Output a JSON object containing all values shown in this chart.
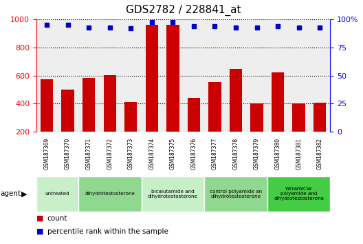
{
  "title": "GDS2782 / 228841_at",
  "samples": [
    "GSM187369",
    "GSM187370",
    "GSM187371",
    "GSM187372",
    "GSM187373",
    "GSM187374",
    "GSM187375",
    "GSM187376",
    "GSM187377",
    "GSM187378",
    "GSM187379",
    "GSM187380",
    "GSM187381",
    "GSM187382"
  ],
  "counts": [
    575,
    500,
    585,
    605,
    410,
    960,
    960,
    440,
    555,
    650,
    400,
    625,
    400,
    405
  ],
  "percentile_ranks": [
    95,
    95,
    93,
    93,
    92,
    98,
    98,
    94,
    94,
    93,
    93,
    94,
    93,
    93
  ],
  "bar_color": "#cc0000",
  "dot_color": "#0000cc",
  "ylim_left": [
    200,
    1000
  ],
  "yticks_left": [
    200,
    400,
    600,
    800,
    1000
  ],
  "ylim_right": [
    0,
    100
  ],
  "yticks_right": [
    0,
    25,
    50,
    75,
    100
  ],
  "groups": [
    {
      "label": "untreated",
      "indices": [
        0,
        1
      ],
      "color": "#c8f0c8"
    },
    {
      "label": "dihydrotestosterone",
      "indices": [
        2,
        3,
        4
      ],
      "color": "#90d890"
    },
    {
      "label": "bicalutamide and\ndihydrotestosterone",
      "indices": [
        5,
        6,
        7
      ],
      "color": "#c8f0c8"
    },
    {
      "label": "control polyamide an\ndihydrotestosterone",
      "indices": [
        8,
        9,
        10
      ],
      "color": "#90d890"
    },
    {
      "label": "WGWWCW\npolyamide and\ndihydrotestosterone",
      "indices": [
        11,
        12,
        13
      ],
      "color": "#44cc44"
    }
  ],
  "legend_count_color": "#cc0000",
  "legend_dot_color": "#0000cc",
  "bg_plot": "#eeeeee",
  "bg_label_row": "#cccccc"
}
